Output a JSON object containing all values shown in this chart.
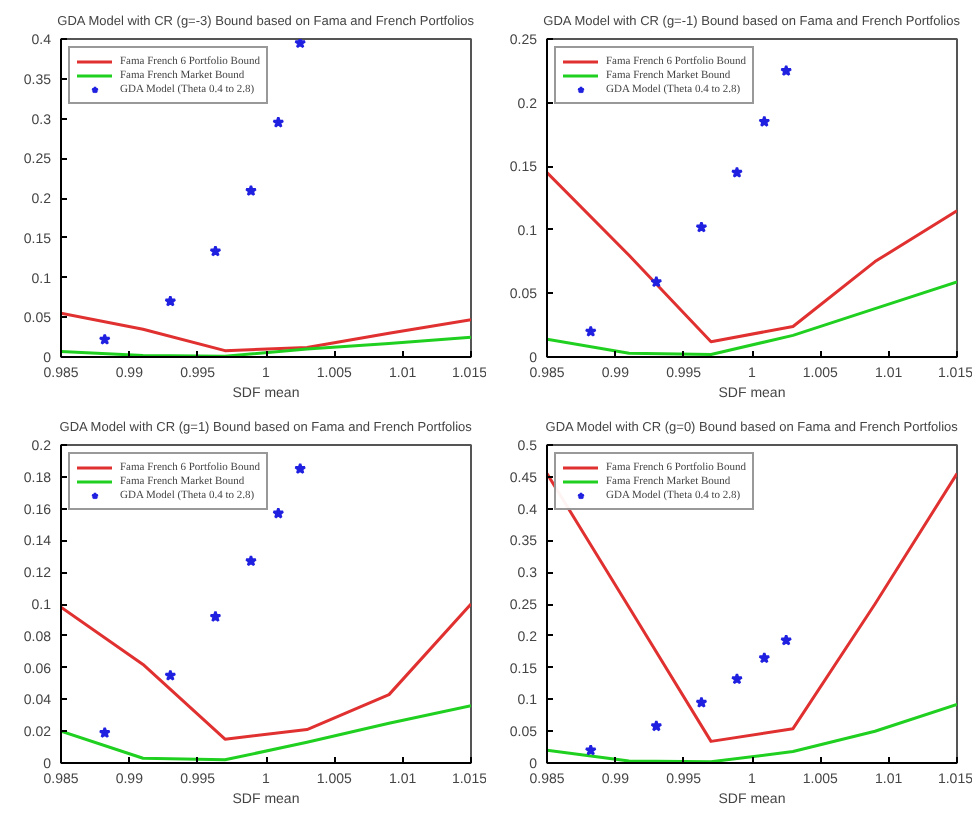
{
  "chart_data": [
    {
      "type": "line",
      "title": "GDA Model with CR (g=-3) Bound based on Fama and French Portfolios",
      "xlabel": "SDF mean",
      "xlim": [
        0.985,
        1.015
      ],
      "xticks": [
        0.985,
        0.99,
        0.995,
        1,
        1.005,
        1.01,
        1.015
      ],
      "ylim": [
        0,
        0.4
      ],
      "yticks": [
        0,
        0.05,
        0.1,
        0.15,
        0.2,
        0.25,
        0.3,
        0.35,
        0.4
      ],
      "grid": false,
      "legend": "top left",
      "series": [
        {
          "name": "Fama French 6 Portfolio Bound",
          "color": "#e03030",
          "x": [
            0.985,
            0.991,
            0.997,
            1.003,
            1.009,
            1.015
          ],
          "values": [
            0.055,
            0.035,
            0.008,
            0.012,
            0.03,
            0.047
          ]
        },
        {
          "name": "Fama French Market Bound",
          "color": "#20d020",
          "x": [
            0.985,
            0.991,
            0.997,
            1.003,
            1.009,
            1.015
          ],
          "values": [
            0.007,
            0.002,
            0.001,
            0.01,
            0.017,
            0.025
          ]
        },
        {
          "name": "GDA Model (Theta 0.4 to 2.8)",
          "type": "scatter",
          "marker": "star",
          "color": "#2020e0",
          "x": [
            0.9882,
            0.993,
            0.9963,
            0.9989,
            1.0009,
            1.0025
          ],
          "values": [
            0.022,
            0.07,
            0.133,
            0.209,
            0.295,
            0.395
          ]
        }
      ]
    },
    {
      "type": "line",
      "title": "GDA Model with CR (g=-1) Bound based on Fama and French Portfolios",
      "xlabel": "SDF mean",
      "xlim": [
        0.985,
        1.015
      ],
      "xticks": [
        0.985,
        0.99,
        0.995,
        1,
        1.005,
        1.01,
        1.015
      ],
      "ylim": [
        0,
        0.25
      ],
      "yticks": [
        0,
        0.05,
        0.1,
        0.15,
        0.2,
        0.25
      ],
      "grid": false,
      "legend": "top left",
      "series": [
        {
          "name": "Fama French 6 Portfolio Bound",
          "color": "#e03030",
          "x": [
            0.985,
            0.991,
            0.997,
            1.003,
            1.009,
            1.015
          ],
          "values": [
            0.145,
            0.08,
            0.012,
            0.024,
            0.075,
            0.115
          ]
        },
        {
          "name": "Fama French Market Bound",
          "color": "#20d020",
          "x": [
            0.985,
            0.991,
            0.997,
            1.003,
            1.009,
            1.015
          ],
          "values": [
            0.014,
            0.003,
            0.002,
            0.017,
            0.038,
            0.059
          ]
        },
        {
          "name": "GDA Model (Theta 0.4 to 2.8)",
          "type": "scatter",
          "marker": "star",
          "color": "#2020e0",
          "x": [
            0.9882,
            0.993,
            0.9963,
            0.9989,
            1.0009,
            1.0025
          ],
          "values": [
            0.02,
            0.059,
            0.102,
            0.145,
            0.185,
            0.225
          ]
        }
      ]
    },
    {
      "type": "line",
      "title": "GDA Model with CR (g=1) Bound based on Fama and French Portfolios",
      "xlabel": "SDF mean",
      "xlim": [
        0.985,
        1.015
      ],
      "xticks": [
        0.985,
        0.99,
        0.995,
        1,
        1.005,
        1.01,
        1.015
      ],
      "ylim": [
        0,
        0.2
      ],
      "yticks": [
        0,
        0.02,
        0.04,
        0.06,
        0.08,
        0.1,
        0.12,
        0.14,
        0.16,
        0.18,
        0.2
      ],
      "grid": false,
      "legend": "top left",
      "series": [
        {
          "name": "Fama French 6 Portfolio Bound",
          "color": "#e03030",
          "x": [
            0.985,
            0.991,
            0.997,
            1.003,
            1.009,
            1.015
          ],
          "values": [
            0.098,
            0.062,
            0.015,
            0.021,
            0.043,
            0.1
          ]
        },
        {
          "name": "Fama French Market Bound",
          "color": "#20d020",
          "x": [
            0.985,
            0.991,
            0.997,
            1.003,
            1.009,
            1.015
          ],
          "values": [
            0.02,
            0.003,
            0.002,
            0.013,
            0.025,
            0.036
          ]
        },
        {
          "name": "GDA Model (Theta 0.4 to 2.8)",
          "type": "scatter",
          "marker": "star",
          "color": "#2020e0",
          "x": [
            0.9882,
            0.993,
            0.9963,
            0.9989,
            1.0009,
            1.0025
          ],
          "values": [
            0.019,
            0.055,
            0.092,
            0.127,
            0.157,
            0.185
          ]
        }
      ]
    },
    {
      "type": "line",
      "title": "GDA Model with CR (g=0) Bound based on Fama and French Portfolios",
      "xlabel": "SDF mean",
      "xlim": [
        0.985,
        1.015
      ],
      "xticks": [
        0.985,
        0.99,
        0.995,
        1,
        1.005,
        1.01,
        1.015
      ],
      "ylim": [
        0,
        0.5
      ],
      "yticks": [
        0,
        0.05,
        0.1,
        0.15,
        0.2,
        0.25,
        0.3,
        0.35,
        0.4,
        0.45,
        0.5
      ],
      "grid": false,
      "legend": "top left",
      "series": [
        {
          "name": "Fama French 6 Portfolio Bound",
          "color": "#e03030",
          "x": [
            0.985,
            0.991,
            0.997,
            1.003,
            1.009,
            1.015
          ],
          "values": [
            0.455,
            0.245,
            0.034,
            0.054,
            0.25,
            0.455
          ]
        },
        {
          "name": "Fama French Market Bound",
          "color": "#20d020",
          "x": [
            0.985,
            0.991,
            0.997,
            1.003,
            1.009,
            1.015
          ],
          "values": [
            0.02,
            0.003,
            0.002,
            0.018,
            0.05,
            0.092
          ]
        },
        {
          "name": "GDA Model (Theta 0.4 to 2.8)",
          "type": "scatter",
          "marker": "star",
          "color": "#2020e0",
          "x": [
            0.9882,
            0.993,
            0.9963,
            0.9989,
            1.0009,
            1.0025
          ],
          "values": [
            0.02,
            0.058,
            0.095,
            0.132,
            0.165,
            0.193
          ]
        }
      ]
    }
  ]
}
